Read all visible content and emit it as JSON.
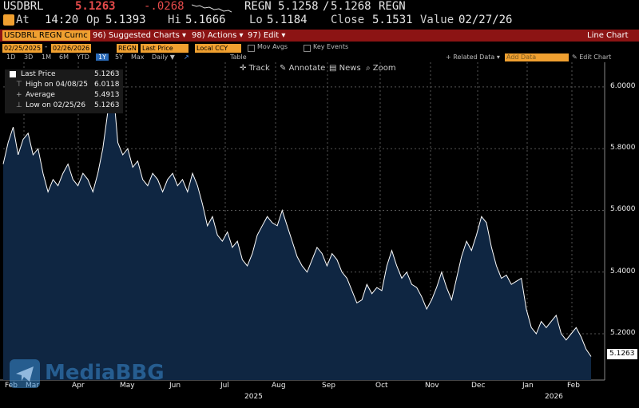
{
  "ticker": {
    "symbol": "USDBRL",
    "last": "5.1263",
    "change": "-.0268",
    "bid_ask_label": "REGN",
    "bid": "5.1258",
    "ask": "5.1268",
    "bid_ask_suffix": "REGN"
  },
  "quote": {
    "at_label": "At",
    "time": "14:20",
    "op_label": "Op",
    "open": "5.1393",
    "hi_label": "Hi",
    "high": "5.1666",
    "lo_label": "Lo",
    "low": "5.1184",
    "close_label": "Close",
    "close": "5.1531",
    "value_label": "Value",
    "value_date": "02/27/26"
  },
  "menubar": {
    "security": "USDBRL REGN Curnc",
    "suggested_num": "96",
    "suggested": "Suggested Charts",
    "actions_num": "98",
    "actions": "Actions",
    "edit_num": "97",
    "edit": "Edit",
    "chart_type": "Line Chart"
  },
  "params": {
    "start": "02/25/2025",
    "end": "02/26/2026",
    "source": "REGN",
    "field": "Last Price",
    "ccy": "Local CCY",
    "mov_avgs": "Mov Avgs",
    "key_events": "Key Events"
  },
  "periods": [
    "1D",
    "3D",
    "1M",
    "6M",
    "YTD",
    "1Y",
    "5Y",
    "Max"
  ],
  "active_period": "1Y",
  "frequency": "Daily",
  "table_label": "Table",
  "related_data": "Related Data",
  "add_data_placeholder": "Add Data",
  "edit_chart": "Edit Chart",
  "tools": {
    "track": "Track",
    "annotate": "Annotate",
    "news": "News",
    "zoom": "Zoom"
  },
  "legend": {
    "last_label": "Last Price",
    "last": "5.1263",
    "high_label": "High on 04/08/25",
    "high": "6.0118",
    "avg_label": "Average",
    "avg": "5.4913",
    "low_label": "Low on 02/25/26",
    "low": "5.1263"
  },
  "watermark": "MediaBBG",
  "chart_data": {
    "type": "area",
    "title": "",
    "xlabel": "",
    "ylabel": "",
    "ylim": [
      5.05,
      6.08
    ],
    "ytick_labels": [
      "6.0000",
      "5.8000",
      "5.6000",
      "5.4000",
      "5.2000"
    ],
    "yticks": [
      6.0,
      5.8,
      5.6,
      5.4,
      5.2
    ],
    "xtick_labels": [
      "Feb",
      "Mar",
      "Apr",
      "May",
      "Jun",
      "Jul",
      "Aug",
      "Sep",
      "Oct",
      "Nov",
      "Dec",
      "Jan",
      "Feb"
    ],
    "year_labels": [
      "2025",
      "2026"
    ],
    "series": [
      {
        "values": [
          5.75,
          5.82,
          5.87,
          5.78,
          5.83,
          5.85,
          5.78,
          5.8,
          5.72,
          5.66,
          5.7,
          5.68,
          5.72,
          5.75,
          5.7,
          5.68,
          5.72,
          5.7,
          5.66,
          5.72,
          5.8,
          5.92,
          6.01,
          5.82,
          5.78,
          5.8,
          5.74,
          5.76,
          5.7,
          5.68,
          5.72,
          5.7,
          5.66,
          5.7,
          5.72,
          5.68,
          5.7,
          5.66,
          5.72,
          5.68,
          5.62,
          5.55,
          5.58,
          5.52,
          5.5,
          5.53,
          5.48,
          5.5,
          5.44,
          5.42,
          5.46,
          5.52,
          5.55,
          5.58,
          5.56,
          5.55,
          5.6,
          5.55,
          5.5,
          5.45,
          5.42,
          5.4,
          5.44,
          5.48,
          5.46,
          5.42,
          5.46,
          5.44,
          5.4,
          5.38,
          5.34,
          5.3,
          5.31,
          5.36,
          5.33,
          5.35,
          5.34,
          5.42,
          5.47,
          5.42,
          5.38,
          5.4,
          5.36,
          5.35,
          5.32,
          5.28,
          5.31,
          5.35,
          5.4,
          5.35,
          5.31,
          5.38,
          5.45,
          5.5,
          5.47,
          5.52,
          5.58,
          5.56,
          5.48,
          5.42,
          5.38,
          5.39,
          5.36,
          5.37,
          5.38,
          5.28,
          5.22,
          5.2,
          5.24,
          5.22,
          5.24,
          5.26,
          5.2,
          5.18,
          5.2,
          5.22,
          5.19,
          5.15,
          5.1263
        ]
      }
    ]
  },
  "colors": {
    "accent_red": "#e64b4b",
    "menu_red": "#8c1414",
    "orange": "#f0a030",
    "area_fill": "#0f2642",
    "line": "#ffffff"
  }
}
